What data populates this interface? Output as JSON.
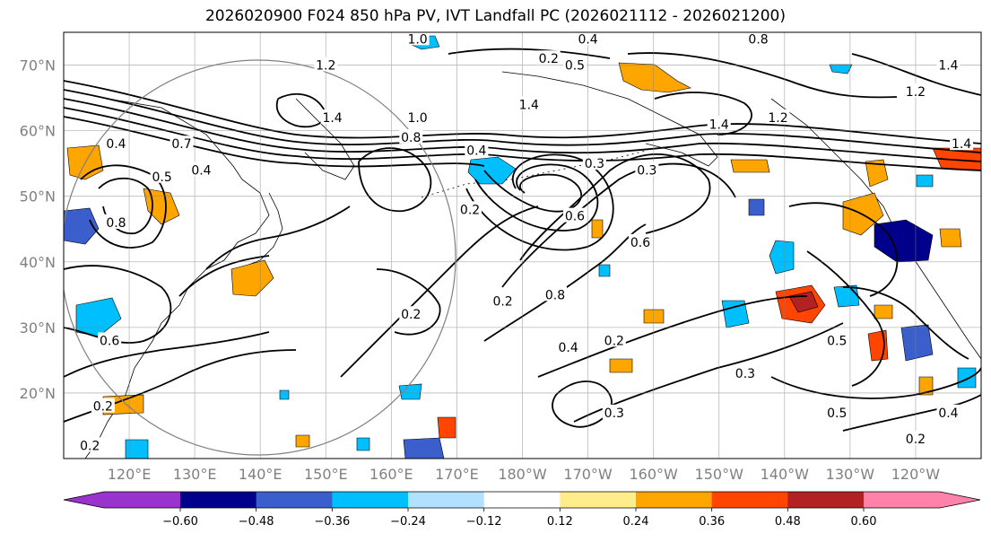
{
  "title": "2026020900 F024 850 hPa PV, IVT Landfall PC (2026021112 - 2026021200)",
  "map": {
    "lat_labels": [
      "70°N",
      "60°N",
      "50°N",
      "40°N",
      "30°N",
      "20°N"
    ],
    "lon_labels": [
      "120°E",
      "130°E",
      "140°E",
      "150°E",
      "160°E",
      "170°E",
      "180°W",
      "170°W",
      "160°W",
      "150°W",
      "140°W",
      "130°W",
      "120°W"
    ],
    "lat_range": [
      10,
      75
    ],
    "lon_range": [
      110,
      250
    ],
    "contour_labels": [
      {
        "text": "1.0",
        "lon": 164,
        "lat": 74
      },
      {
        "text": "0.4",
        "lon": 190,
        "lat": 74
      },
      {
        "text": "0.8",
        "lon": 216,
        "lat": 74
      },
      {
        "text": "1.2",
        "lon": 150,
        "lat": 70
      },
      {
        "text": "0.2",
        "lon": 184,
        "lat": 71
      },
      {
        "text": "0.5",
        "lon": 188,
        "lat": 70
      },
      {
        "text": "1.4",
        "lon": 245,
        "lat": 70
      },
      {
        "text": "1.2",
        "lon": 240,
        "lat": 66
      },
      {
        "text": "1.4",
        "lon": 181,
        "lat": 64
      },
      {
        "text": "1.0",
        "lon": 164,
        "lat": 62
      },
      {
        "text": "1.4",
        "lon": 151,
        "lat": 62
      },
      {
        "text": "1.2",
        "lon": 219,
        "lat": 62
      },
      {
        "text": "1.4",
        "lon": 210,
        "lat": 61
      },
      {
        "text": "0.8",
        "lon": 163,
        "lat": 59
      },
      {
        "text": "0.4",
        "lon": 173,
        "lat": 57
      },
      {
        "text": "0.7",
        "lon": 128,
        "lat": 58
      },
      {
        "text": "0.4",
        "lon": 131,
        "lat": 54
      },
      {
        "text": "0.5",
        "lon": 125,
        "lat": 53
      },
      {
        "text": "0.4",
        "lon": 118,
        "lat": 58
      },
      {
        "text": "1.4",
        "lon": 247,
        "lat": 58
      },
      {
        "text": "0.3",
        "lon": 191,
        "lat": 55
      },
      {
        "text": "0.3",
        "lon": 199,
        "lat": 54
      },
      {
        "text": "0.8",
        "lon": 118,
        "lat": 46
      },
      {
        "text": "0.2",
        "lon": 172,
        "lat": 48
      },
      {
        "text": "0.6",
        "lon": 188,
        "lat": 47
      },
      {
        "text": "0.6",
        "lon": 198,
        "lat": 43
      },
      {
        "text": "0.2",
        "lon": 177,
        "lat": 34
      },
      {
        "text": "0.2",
        "lon": 163,
        "lat": 32
      },
      {
        "text": "0.8",
        "lon": 185,
        "lat": 35
      },
      {
        "text": "0.4",
        "lon": 187,
        "lat": 27
      },
      {
        "text": "0.2",
        "lon": 194,
        "lat": 28
      },
      {
        "text": "0.6",
        "lon": 117,
        "lat": 28
      },
      {
        "text": "0.5",
        "lon": 228,
        "lat": 28
      },
      {
        "text": "0.3",
        "lon": 214,
        "lat": 23
      },
      {
        "text": "0.5",
        "lon": 228,
        "lat": 17
      },
      {
        "text": "0.4",
        "lon": 245,
        "lat": 17
      },
      {
        "text": "0.2",
        "lon": 116,
        "lat": 18
      },
      {
        "text": "0.3",
        "lon": 194,
        "lat": 17
      },
      {
        "text": "0.2",
        "lon": 240,
        "lat": 13
      },
      {
        "text": "0.2",
        "lon": 114,
        "lat": 12
      }
    ]
  },
  "colorbar": {
    "colors": [
      "#9a32cd",
      "#00008b",
      "#3a5fcd",
      "#00bfff",
      "#b0e2ff",
      "#ffffff",
      "#ffec8b",
      "#ffa500",
      "#ff4500",
      "#b22222",
      "#ff82ab"
    ],
    "ticks": [
      "−0.60",
      "−0.48",
      "−0.36",
      "−0.24",
      "−0.12",
      "0.12",
      "0.24",
      "0.36",
      "0.48",
      "0.60"
    ]
  }
}
